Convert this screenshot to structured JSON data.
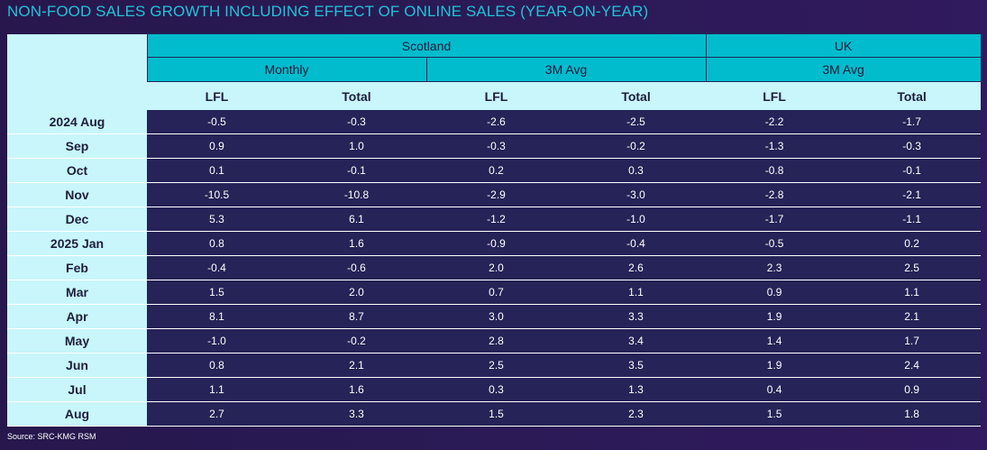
{
  "title": "NON-FOOD SALES GROWTH INCLUDING EFFECT OF ONLINE SALES (YEAR-ON-YEAR)",
  "source": "Source: SRC-KMG RSM",
  "colors": {
    "title": "#22c3d8",
    "header": "#00bccd",
    "light": "#c8f6fb",
    "cell": "#252357"
  },
  "chart_data": {
    "type": "table",
    "title": "NON-FOOD SALES GROWTH INCLUDING EFFECT OF ONLINE SALES (YEAR-ON-YEAR)",
    "regions": [
      "Scotland",
      "UK"
    ],
    "measures": [
      "Monthly",
      "3M Avg",
      "3M Avg"
    ],
    "columns": [
      "LFL",
      "Total",
      "LFL",
      "Total",
      "LFL",
      "Total"
    ],
    "rows": [
      {
        "label": "2024 Aug",
        "values": [
          "-0.5",
          "-0.3",
          "-2.6",
          "-2.5",
          "-2.2",
          "-1.7"
        ]
      },
      {
        "label": "Sep",
        "values": [
          "0.9",
          "1.0",
          "-0.3",
          "-0.2",
          "-1.3",
          "-0.3"
        ]
      },
      {
        "label": "Oct",
        "values": [
          "0.1",
          "-0.1",
          "0.2",
          "0.3",
          "-0.8",
          "-0.1"
        ]
      },
      {
        "label": "Nov",
        "values": [
          "-10.5",
          "-10.8",
          "-2.9",
          "-3.0",
          "-2.8",
          "-2.1"
        ]
      },
      {
        "label": "Dec",
        "values": [
          "5.3",
          "6.1",
          "-1.2",
          "-1.0",
          "-1.7",
          "-1.1"
        ]
      },
      {
        "label": "2025 Jan",
        "values": [
          "0.8",
          "1.6",
          "-0.9",
          "-0.4",
          "-0.5",
          "0.2"
        ]
      },
      {
        "label": "Feb",
        "values": [
          "-0.4",
          "-0.6",
          "2.0",
          "2.6",
          "2.3",
          "2.5"
        ]
      },
      {
        "label": "Mar",
        "values": [
          "1.5",
          "2.0",
          "0.7",
          "1.1",
          "0.9",
          "1.1"
        ]
      },
      {
        "label": "Apr",
        "values": [
          "8.1",
          "8.7",
          "3.0",
          "3.3",
          "1.9",
          "2.1"
        ]
      },
      {
        "label": "May",
        "values": [
          "-1.0",
          "-0.2",
          "2.8",
          "3.4",
          "1.4",
          "1.7"
        ]
      },
      {
        "label": "Jun",
        "values": [
          "0.8",
          "2.1",
          "2.5",
          "3.5",
          "1.9",
          "2.4"
        ]
      },
      {
        "label": "Jul",
        "values": [
          "1.1",
          "1.6",
          "0.3",
          "1.3",
          "0.4",
          "0.9"
        ]
      },
      {
        "label": "Aug",
        "values": [
          "2.7",
          "3.3",
          "1.5",
          "2.3",
          "1.5",
          "1.8"
        ]
      }
    ]
  }
}
